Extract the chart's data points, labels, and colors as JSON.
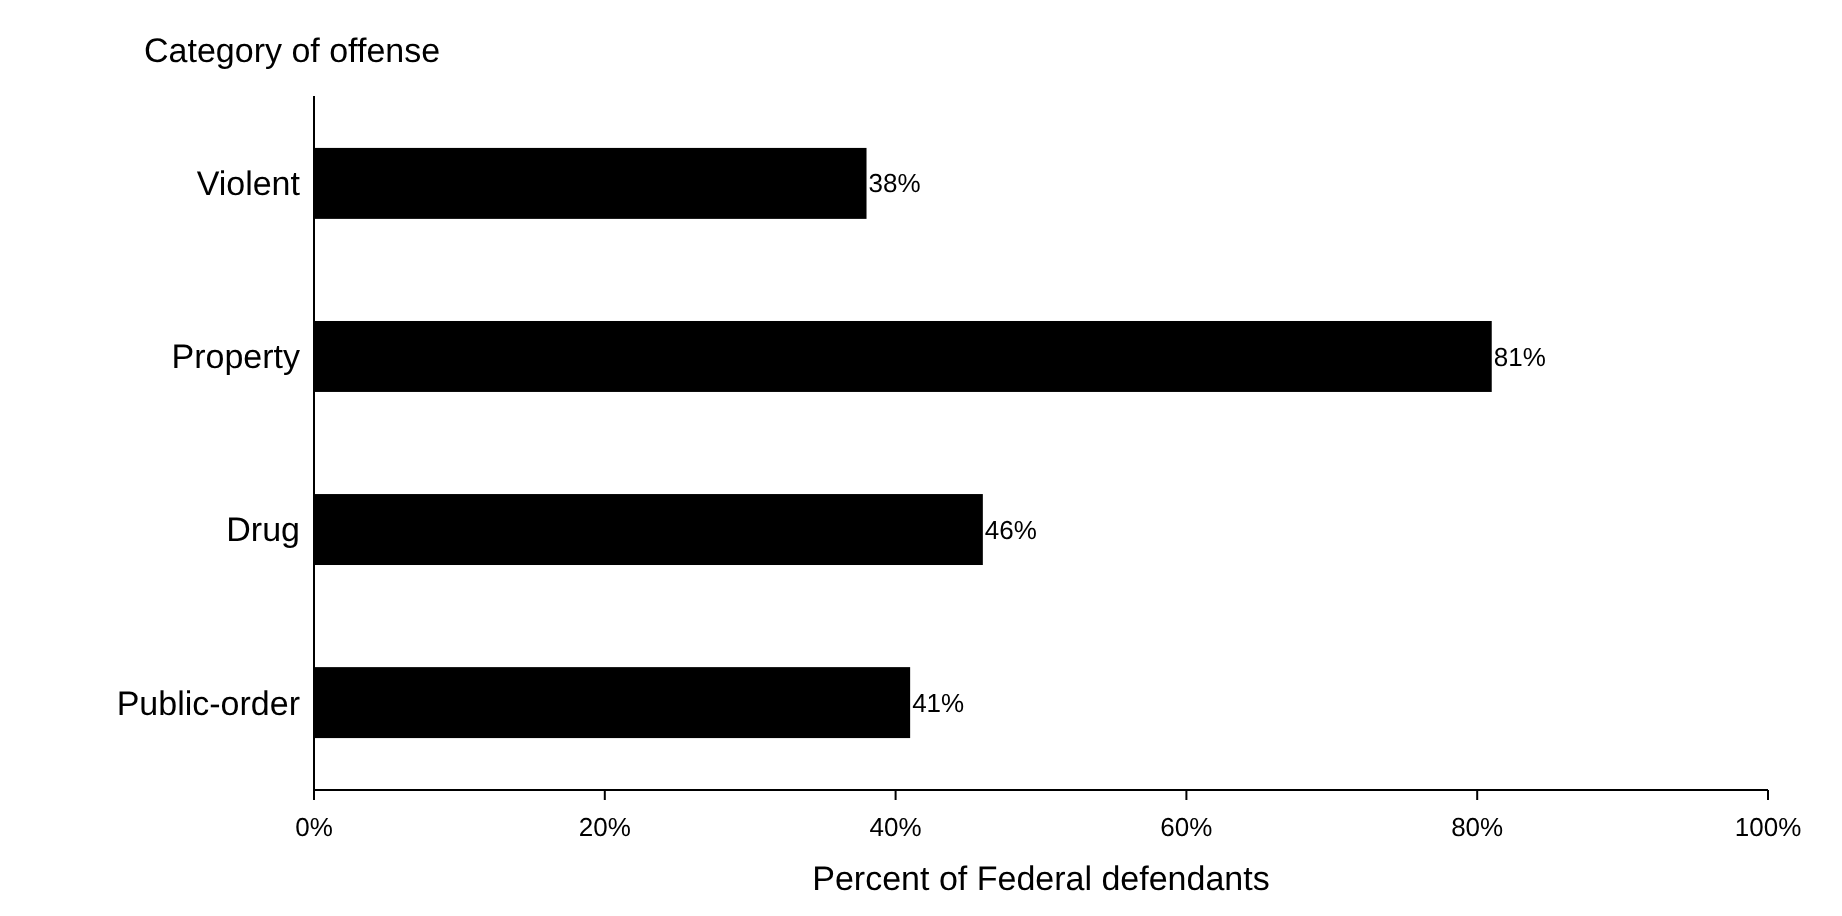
{
  "chart_data": {
    "type": "bar",
    "orientation": "horizontal",
    "ylabel": "Category of offense",
    "xlabel": "Percent of Federal defendants",
    "categories": [
      "Violent",
      "Property",
      "Drug",
      "Public-order"
    ],
    "values": [
      38,
      81,
      46,
      41
    ],
    "value_labels": [
      "38%",
      "81%",
      "46%",
      "41%"
    ],
    "color": "#000000",
    "xlim": [
      0,
      100
    ],
    "xticks": [
      {
        "value": 0,
        "label": "0%"
      },
      {
        "value": 20,
        "label": "20%"
      },
      {
        "value": 40,
        "label": "40%"
      },
      {
        "value": 60,
        "label": "60%"
      },
      {
        "value": 80,
        "label": "80%"
      },
      {
        "value": 100,
        "label": "100%"
      }
    ],
    "grid": false
  }
}
